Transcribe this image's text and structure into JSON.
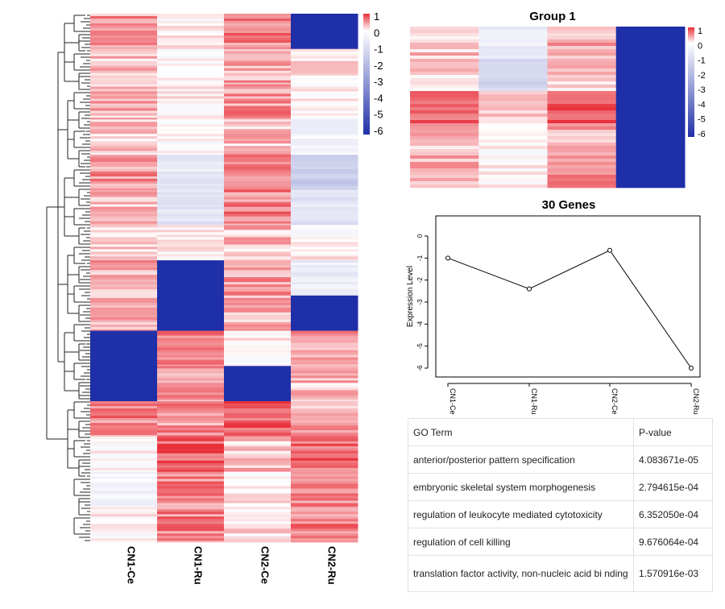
{
  "colors": {
    "high": "#e8303a",
    "mid": "#ffffff",
    "low": "#1e2fa8",
    "line": "#000000"
  },
  "chart_data": [
    {
      "type": "heatmap",
      "title": "",
      "columns": [
        "CN1-Ce",
        "CN1-Ru",
        "CN2-Ce",
        "CN2-Ru"
      ],
      "colorbar_ticks": [
        "1",
        "0",
        "-1",
        "-2",
        "-3",
        "-4",
        "-5",
        "-6"
      ],
      "color_range": [
        -6,
        1
      ],
      "has_row_dendrogram": true,
      "row_blocks": [
        {
          "values": [
            0.5,
            0.0,
            0.6,
            -6.0
          ]
        },
        {
          "values": [
            0.3,
            -0.1,
            0.4,
            0.1
          ]
        },
        {
          "values": [
            0.4,
            0.0,
            0.5,
            0.0
          ]
        },
        {
          "values": [
            0.2,
            0.0,
            0.3,
            -0.3
          ]
        },
        {
          "values": [
            0.5,
            -0.6,
            0.5,
            -1.5
          ]
        },
        {
          "values": [
            0.3,
            -0.8,
            0.6,
            -0.8
          ]
        },
        {
          "values": [
            0.2,
            0.0,
            0.3,
            0.0
          ]
        },
        {
          "values": [
            0.4,
            -6.0,
            0.5,
            -0.5
          ]
        },
        {
          "values": [
            0.3,
            -6.0,
            0.4,
            -6.0
          ]
        },
        {
          "values": [
            -6.0,
            0.6,
            0.0,
            0.5
          ]
        },
        {
          "values": [
            -6.0,
            0.5,
            -6.0,
            0.3
          ]
        },
        {
          "values": [
            0.6,
            0.5,
            0.8,
            0.4
          ]
        },
        {
          "values": [
            0.0,
            0.8,
            0.3,
            0.7
          ]
        },
        {
          "values": [
            -0.3,
            0.6,
            0.1,
            0.5
          ]
        },
        {
          "values": [
            0.0,
            0.6,
            0.2,
            0.6
          ]
        }
      ]
    },
    {
      "type": "heatmap",
      "title": "Group 1",
      "columns": [
        "CN1-Ce",
        "CN1-Ru",
        "CN2-Ce",
        "CN2-Ru"
      ],
      "colorbar_ticks": [
        "1",
        "0",
        "-1",
        "-2",
        "-3",
        "-4",
        "-5",
        "-6"
      ],
      "color_range": [
        -6,
        1
      ],
      "row_blocks": [
        {
          "values": [
            0.3,
            -0.5,
            0.4,
            -6.0
          ]
        },
        {
          "values": [
            0.2,
            -1.2,
            0.3,
            -6.0
          ]
        },
        {
          "values": [
            0.8,
            0.2,
            0.9,
            -6.0
          ]
        },
        {
          "values": [
            0.3,
            0.0,
            0.4,
            -6.0
          ]
        },
        {
          "values": [
            0.4,
            0.0,
            0.5,
            -6.0
          ]
        }
      ]
    },
    {
      "type": "line",
      "title": "30 Genes",
      "xlabel": "",
      "ylabel": "Expression Level",
      "categories": [
        "CN1-Ce",
        "CN1-Ru",
        "CN2-Ce",
        "CN2-Ru"
      ],
      "values": [
        -1.0,
        -2.4,
        -0.65,
        -6.0
      ],
      "ylim": [
        -6,
        0
      ],
      "yticks": [
        "0",
        "-1",
        "-2",
        "-3",
        "-4",
        "-5",
        "-6"
      ],
      "grid": false
    }
  ],
  "go_table": {
    "headers": [
      "GO Term",
      "P-value"
    ],
    "rows": [
      {
        "term": "anterior/posterior pattern specification",
        "p": "4.083671e-05"
      },
      {
        "term": "embryonic skeletal system morphogenesis",
        "p": "2.794615e-04"
      },
      {
        "term": "regulation of leukocyte mediated cytotoxicity",
        "p": "6.352050e-04"
      },
      {
        "term": "regulation of cell killing",
        "p": "9.676064e-04"
      },
      {
        "term": "translation factor activity, non-nucleic acid bi nding",
        "p": "1.570916e-03"
      }
    ]
  }
}
